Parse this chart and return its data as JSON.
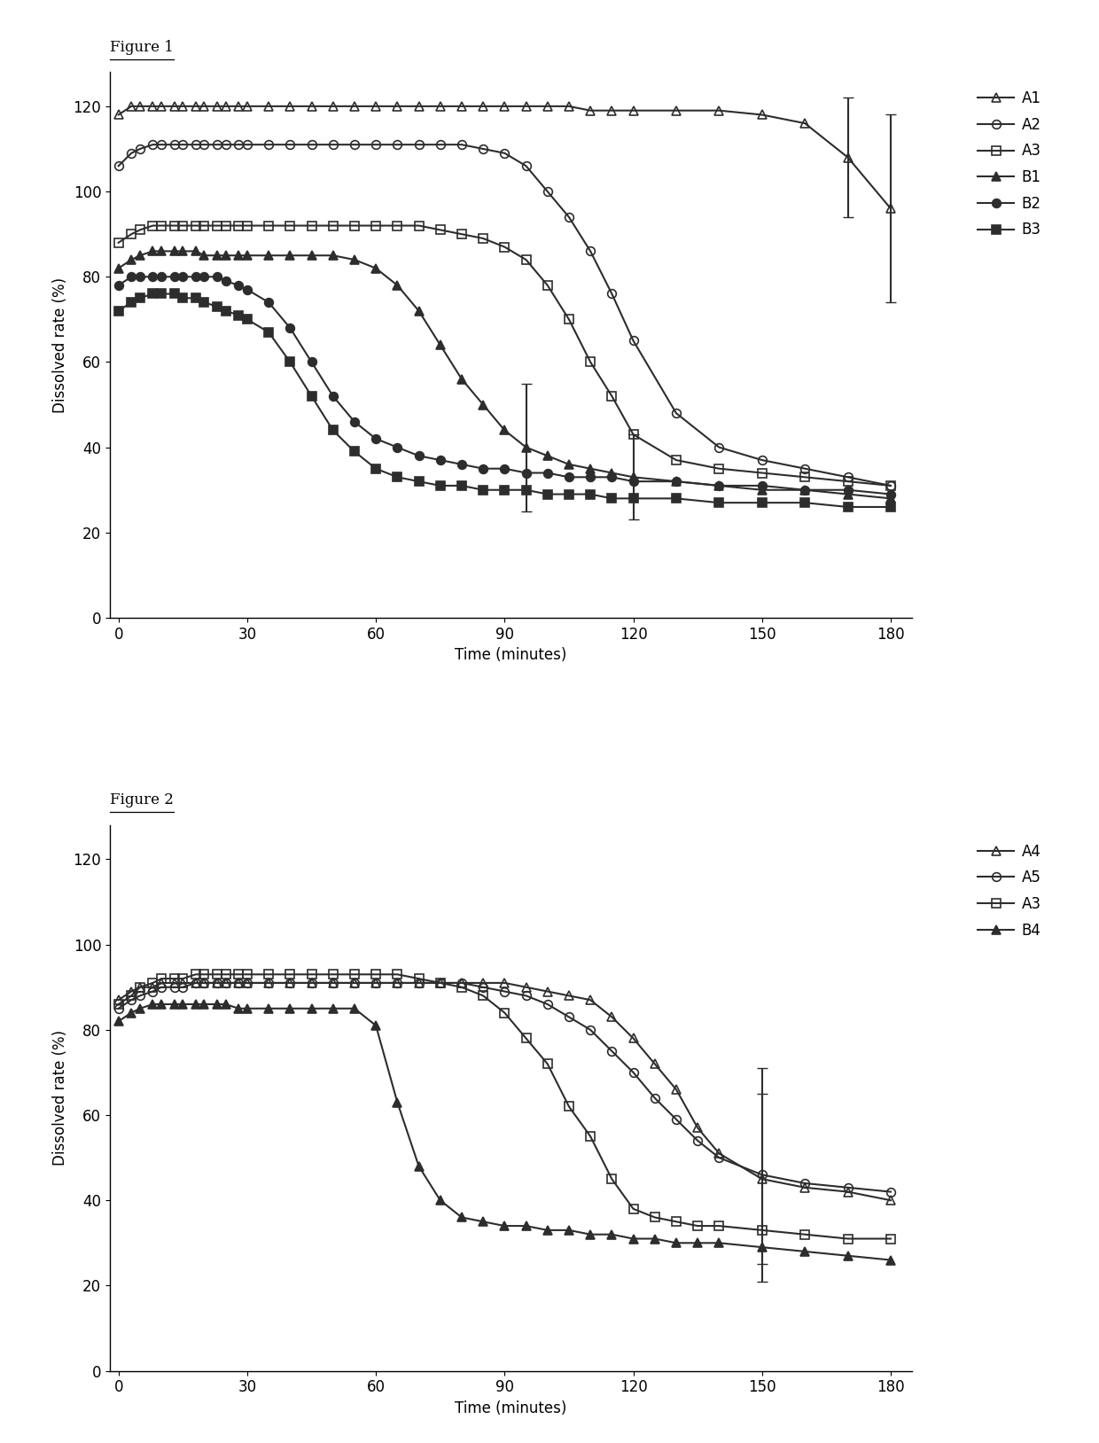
{
  "fig1": {
    "title": "Figure 1",
    "xlabel": "Time (minutes)",
    "ylabel": "Dissolved rate (%)",
    "ylim": [
      0,
      128
    ],
    "xlim": [
      -2,
      185
    ],
    "yticks": [
      0,
      20,
      40,
      60,
      80,
      100,
      120
    ],
    "xticks": [
      0,
      30,
      60,
      90,
      120,
      150,
      180
    ],
    "series": [
      {
        "key": "A1",
        "x": [
          0,
          3,
          5,
          8,
          10,
          13,
          15,
          18,
          20,
          23,
          25,
          28,
          30,
          35,
          40,
          45,
          50,
          55,
          60,
          65,
          70,
          75,
          80,
          85,
          90,
          95,
          100,
          105,
          110,
          115,
          120,
          130,
          140,
          150,
          160,
          170,
          180
        ],
        "y": [
          118,
          120,
          120,
          120,
          120,
          120,
          120,
          120,
          120,
          120,
          120,
          120,
          120,
          120,
          120,
          120,
          120,
          120,
          120,
          120,
          120,
          120,
          120,
          120,
          120,
          120,
          120,
          120,
          119,
          119,
          119,
          119,
          119,
          118,
          116,
          108,
          96
        ],
        "yerr": [
          null,
          null,
          null,
          null,
          null,
          null,
          null,
          null,
          null,
          null,
          null,
          null,
          null,
          null,
          null,
          null,
          null,
          null,
          null,
          null,
          null,
          null,
          null,
          null,
          null,
          null,
          null,
          null,
          null,
          null,
          null,
          null,
          null,
          null,
          null,
          14,
          22
        ],
        "marker": "^",
        "filled": false,
        "label": "A1"
      },
      {
        "key": "A2",
        "x": [
          0,
          3,
          5,
          8,
          10,
          13,
          15,
          18,
          20,
          23,
          25,
          28,
          30,
          35,
          40,
          45,
          50,
          55,
          60,
          65,
          70,
          75,
          80,
          85,
          90,
          95,
          100,
          105,
          110,
          115,
          120,
          130,
          140,
          150,
          160,
          170,
          180
        ],
        "y": [
          106,
          109,
          110,
          111,
          111,
          111,
          111,
          111,
          111,
          111,
          111,
          111,
          111,
          111,
          111,
          111,
          111,
          111,
          111,
          111,
          111,
          111,
          111,
          110,
          109,
          106,
          100,
          94,
          86,
          76,
          65,
          48,
          40,
          37,
          35,
          33,
          31
        ],
        "yerr": [
          null,
          null,
          null,
          null,
          null,
          null,
          null,
          null,
          null,
          null,
          null,
          null,
          null,
          null,
          null,
          null,
          null,
          null,
          null,
          null,
          null,
          null,
          null,
          null,
          null,
          null,
          null,
          null,
          null,
          null,
          null,
          null,
          null,
          null,
          null,
          null,
          null
        ],
        "marker": "o",
        "filled": false,
        "label": "A2"
      },
      {
        "key": "A3",
        "x": [
          0,
          3,
          5,
          8,
          10,
          13,
          15,
          18,
          20,
          23,
          25,
          28,
          30,
          35,
          40,
          45,
          50,
          55,
          60,
          65,
          70,
          75,
          80,
          85,
          90,
          95,
          100,
          105,
          110,
          115,
          120,
          130,
          140,
          150,
          160,
          170,
          180
        ],
        "y": [
          88,
          90,
          91,
          92,
          92,
          92,
          92,
          92,
          92,
          92,
          92,
          92,
          92,
          92,
          92,
          92,
          92,
          92,
          92,
          92,
          92,
          91,
          90,
          89,
          87,
          84,
          78,
          70,
          60,
          52,
          43,
          37,
          35,
          34,
          33,
          32,
          31
        ],
        "yerr": [
          null,
          null,
          null,
          null,
          null,
          null,
          null,
          null,
          null,
          null,
          null,
          null,
          null,
          null,
          null,
          null,
          null,
          null,
          null,
          null,
          null,
          null,
          null,
          null,
          null,
          null,
          null,
          null,
          null,
          null,
          null,
          null,
          null,
          null,
          null,
          null,
          null
        ],
        "marker": "s",
        "filled": false,
        "label": "A3"
      },
      {
        "key": "B1",
        "x": [
          0,
          3,
          5,
          8,
          10,
          13,
          15,
          18,
          20,
          23,
          25,
          28,
          30,
          35,
          40,
          45,
          50,
          55,
          60,
          65,
          70,
          75,
          80,
          85,
          90,
          95,
          100,
          105,
          110,
          115,
          120,
          130,
          140,
          150,
          160,
          170,
          180
        ],
        "y": [
          82,
          84,
          85,
          86,
          86,
          86,
          86,
          86,
          85,
          85,
          85,
          85,
          85,
          85,
          85,
          85,
          85,
          84,
          82,
          78,
          72,
          64,
          56,
          50,
          44,
          40,
          38,
          36,
          35,
          34,
          33,
          32,
          31,
          30,
          30,
          29,
          28
        ],
        "yerr": [
          null,
          null,
          null,
          null,
          null,
          null,
          null,
          null,
          null,
          null,
          null,
          null,
          null,
          null,
          null,
          null,
          null,
          null,
          null,
          null,
          null,
          null,
          null,
          null,
          null,
          15,
          null,
          null,
          null,
          null,
          10,
          null,
          null,
          null,
          null,
          null,
          null
        ],
        "marker": "^",
        "filled": true,
        "label": "B1"
      },
      {
        "key": "B2",
        "x": [
          0,
          3,
          5,
          8,
          10,
          13,
          15,
          18,
          20,
          23,
          25,
          28,
          30,
          35,
          40,
          45,
          50,
          55,
          60,
          65,
          70,
          75,
          80,
          85,
          90,
          95,
          100,
          105,
          110,
          115,
          120,
          130,
          140,
          150,
          160,
          170,
          180
        ],
        "y": [
          78,
          80,
          80,
          80,
          80,
          80,
          80,
          80,
          80,
          80,
          79,
          78,
          77,
          74,
          68,
          60,
          52,
          46,
          42,
          40,
          38,
          37,
          36,
          35,
          35,
          34,
          34,
          33,
          33,
          33,
          32,
          32,
          31,
          31,
          30,
          30,
          29
        ],
        "yerr": [
          null,
          null,
          null,
          null,
          null,
          null,
          null,
          null,
          null,
          null,
          null,
          null,
          null,
          null,
          null,
          null,
          null,
          null,
          null,
          null,
          null,
          null,
          null,
          null,
          null,
          null,
          null,
          null,
          null,
          null,
          null,
          null,
          null,
          null,
          null,
          null,
          null
        ],
        "marker": "o",
        "filled": true,
        "label": "B2"
      },
      {
        "key": "B3",
        "x": [
          0,
          3,
          5,
          8,
          10,
          13,
          15,
          18,
          20,
          23,
          25,
          28,
          30,
          35,
          40,
          45,
          50,
          55,
          60,
          65,
          70,
          75,
          80,
          85,
          90,
          95,
          100,
          105,
          110,
          115,
          120,
          130,
          140,
          150,
          160,
          170,
          180
        ],
        "y": [
          72,
          74,
          75,
          76,
          76,
          76,
          75,
          75,
          74,
          73,
          72,
          71,
          70,
          67,
          60,
          52,
          44,
          39,
          35,
          33,
          32,
          31,
          31,
          30,
          30,
          30,
          29,
          29,
          29,
          28,
          28,
          28,
          27,
          27,
          27,
          26,
          26
        ],
        "yerr": [
          null,
          null,
          null,
          null,
          null,
          null,
          null,
          null,
          null,
          null,
          null,
          null,
          null,
          null,
          null,
          null,
          null,
          null,
          null,
          null,
          null,
          null,
          null,
          null,
          null,
          null,
          null,
          null,
          null,
          null,
          null,
          null,
          null,
          null,
          null,
          null,
          null
        ],
        "marker": "s",
        "filled": true,
        "label": "B3"
      }
    ]
  },
  "fig2": {
    "title": "Figure 2",
    "xlabel": "Time (minutes)",
    "ylabel": "Dissolved rate (%)",
    "ylim": [
      0,
      128
    ],
    "xlim": [
      -2,
      185
    ],
    "yticks": [
      0,
      20,
      40,
      60,
      80,
      100,
      120
    ],
    "xticks": [
      0,
      30,
      60,
      90,
      120,
      150,
      180
    ],
    "series": [
      {
        "key": "A4",
        "x": [
          0,
          3,
          5,
          8,
          10,
          13,
          15,
          18,
          20,
          23,
          25,
          28,
          30,
          35,
          40,
          45,
          50,
          55,
          60,
          65,
          70,
          75,
          80,
          85,
          90,
          95,
          100,
          105,
          110,
          115,
          120,
          125,
          130,
          135,
          140,
          150,
          160,
          170,
          180
        ],
        "y": [
          87,
          89,
          90,
          90,
          91,
          91,
          91,
          91,
          91,
          91,
          91,
          91,
          91,
          91,
          91,
          91,
          91,
          91,
          91,
          91,
          91,
          91,
          91,
          91,
          91,
          90,
          89,
          88,
          87,
          83,
          78,
          72,
          66,
          57,
          51,
          45,
          43,
          42,
          40
        ],
        "yerr": [
          null,
          null,
          null,
          null,
          null,
          null,
          null,
          null,
          null,
          null,
          null,
          null,
          null,
          null,
          null,
          null,
          null,
          null,
          null,
          null,
          null,
          null,
          null,
          null,
          null,
          null,
          null,
          null,
          null,
          null,
          null,
          null,
          null,
          null,
          null,
          20,
          null,
          null,
          null
        ],
        "marker": "^",
        "filled": false,
        "label": "A4"
      },
      {
        "key": "A5",
        "x": [
          0,
          3,
          5,
          8,
          10,
          13,
          15,
          18,
          20,
          23,
          25,
          28,
          30,
          35,
          40,
          45,
          50,
          55,
          60,
          65,
          70,
          75,
          80,
          85,
          90,
          95,
          100,
          105,
          110,
          115,
          120,
          125,
          130,
          135,
          140,
          150,
          160,
          170,
          180
        ],
        "y": [
          85,
          87,
          88,
          89,
          90,
          90,
          90,
          91,
          91,
          91,
          91,
          91,
          91,
          91,
          91,
          91,
          91,
          91,
          91,
          91,
          91,
          91,
          91,
          90,
          89,
          88,
          86,
          83,
          80,
          75,
          70,
          64,
          59,
          54,
          50,
          46,
          44,
          43,
          42
        ],
        "yerr": [
          null,
          null,
          null,
          null,
          null,
          null,
          null,
          null,
          null,
          null,
          null,
          null,
          null,
          null,
          null,
          null,
          null,
          null,
          null,
          null,
          null,
          null,
          null,
          null,
          null,
          null,
          null,
          null,
          null,
          null,
          null,
          null,
          null,
          null,
          null,
          25,
          null,
          null,
          null
        ],
        "marker": "o",
        "filled": false,
        "label": "A5"
      },
      {
        "key": "A3",
        "x": [
          0,
          3,
          5,
          8,
          10,
          13,
          15,
          18,
          20,
          23,
          25,
          28,
          30,
          35,
          40,
          45,
          50,
          55,
          60,
          65,
          70,
          75,
          80,
          85,
          90,
          95,
          100,
          105,
          110,
          115,
          120,
          125,
          130,
          135,
          140,
          150,
          160,
          170,
          180
        ],
        "y": [
          86,
          88,
          90,
          91,
          92,
          92,
          92,
          93,
          93,
          93,
          93,
          93,
          93,
          93,
          93,
          93,
          93,
          93,
          93,
          93,
          92,
          91,
          90,
          88,
          84,
          78,
          72,
          62,
          55,
          45,
          38,
          36,
          35,
          34,
          34,
          33,
          32,
          31,
          31
        ],
        "yerr": [
          null,
          null,
          null,
          null,
          null,
          null,
          null,
          null,
          null,
          null,
          null,
          null,
          null,
          null,
          null,
          null,
          null,
          null,
          null,
          null,
          null,
          null,
          null,
          null,
          null,
          null,
          null,
          null,
          null,
          null,
          null,
          null,
          null,
          null,
          null,
          null,
          null,
          null,
          null
        ],
        "marker": "s",
        "filled": false,
        "label": "A3"
      },
      {
        "key": "B4",
        "x": [
          0,
          3,
          5,
          8,
          10,
          13,
          15,
          18,
          20,
          23,
          25,
          28,
          30,
          35,
          40,
          45,
          50,
          55,
          60,
          65,
          70,
          75,
          80,
          85,
          90,
          95,
          100,
          105,
          110,
          115,
          120,
          125,
          130,
          135,
          140,
          150,
          160,
          170,
          180
        ],
        "y": [
          82,
          84,
          85,
          86,
          86,
          86,
          86,
          86,
          86,
          86,
          86,
          85,
          85,
          85,
          85,
          85,
          85,
          85,
          81,
          63,
          48,
          40,
          36,
          35,
          34,
          34,
          33,
          33,
          32,
          32,
          31,
          31,
          30,
          30,
          30,
          29,
          28,
          27,
          26
        ],
        "yerr": [
          null,
          null,
          null,
          null,
          null,
          null,
          null,
          null,
          null,
          null,
          null,
          null,
          null,
          null,
          null,
          null,
          null,
          null,
          null,
          null,
          null,
          null,
          null,
          null,
          null,
          null,
          null,
          null,
          null,
          null,
          null,
          null,
          null,
          null,
          null,
          null,
          null,
          null,
          null
        ],
        "marker": "^",
        "filled": true,
        "label": "B4"
      }
    ]
  },
  "color": "#2d2d2d",
  "font_size": 12,
  "marker_size": 7,
  "line_width": 1.5,
  "cap_size": 4
}
